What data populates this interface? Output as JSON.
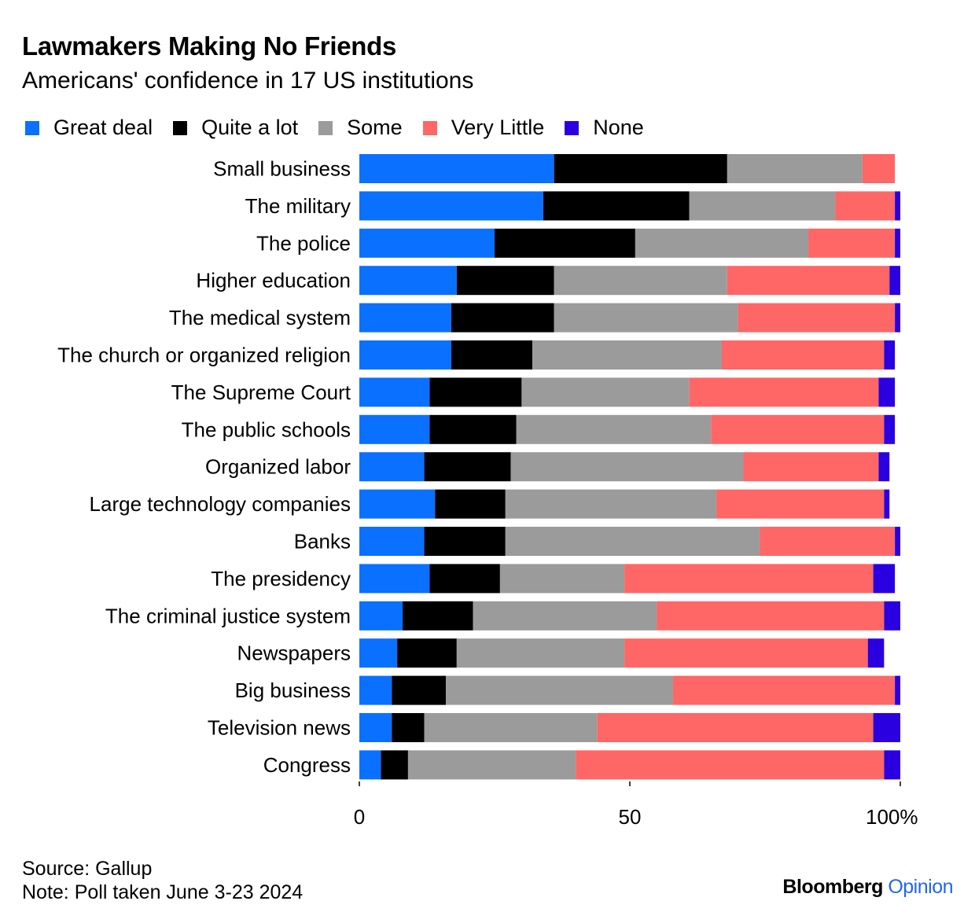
{
  "header": {
    "title": "Lawmakers Making No Friends",
    "subtitle": "Americans' confidence in 17 US institutions"
  },
  "footer": {
    "source": "Source: Gallup",
    "note": "Note: Poll taken June 3-23 2024",
    "brand_primary": "Bloomberg",
    "brand_secondary": "Opinion"
  },
  "chart_data": {
    "type": "bar",
    "orientation": "horizontal",
    "stacked": true,
    "categories": [
      "Small business",
      "The military",
      "The police",
      "Higher education",
      "The medical system",
      "The church or organized religion",
      "The Supreme Court",
      "The public schools",
      "Organized labor",
      "Large technology companies",
      "Banks",
      "The presidency",
      "The criminal justice system",
      "Newspapers",
      "Big business",
      "Television news",
      "Congress"
    ],
    "series": [
      {
        "name": "Great deal",
        "color": "#0a70ff",
        "values": [
          36,
          34,
          25,
          18,
          17,
          17,
          13,
          13,
          12,
          14,
          12,
          13,
          8,
          7,
          6,
          6,
          4
        ]
      },
      {
        "name": "Quite a lot",
        "color": "#000000",
        "values": [
          32,
          27,
          26,
          18,
          19,
          15,
          17,
          16,
          16,
          13,
          15,
          13,
          13,
          11,
          10,
          6,
          5
        ]
      },
      {
        "name": "Some",
        "color": "#9b9b9b",
        "values": [
          25,
          27,
          32,
          32,
          34,
          35,
          31,
          36,
          43,
          39,
          47,
          23,
          34,
          31,
          42,
          32,
          31
        ]
      },
      {
        "name": "Very Little",
        "color": "#ff6666",
        "values": [
          6,
          11,
          16,
          30,
          29,
          30,
          35,
          32,
          25,
          31,
          25,
          46,
          42,
          45,
          41,
          51,
          57
        ]
      },
      {
        "name": "None",
        "color": "#2a00e0",
        "values": [
          0,
          1,
          1,
          2,
          1,
          2,
          3,
          2,
          2,
          1,
          1,
          4,
          3,
          3,
          1,
          5,
          3
        ]
      }
    ],
    "x_ticks": [
      "0",
      "50",
      "100%"
    ],
    "xlim": [
      0,
      100
    ],
    "legend_position": "top-left",
    "grid": false
  }
}
